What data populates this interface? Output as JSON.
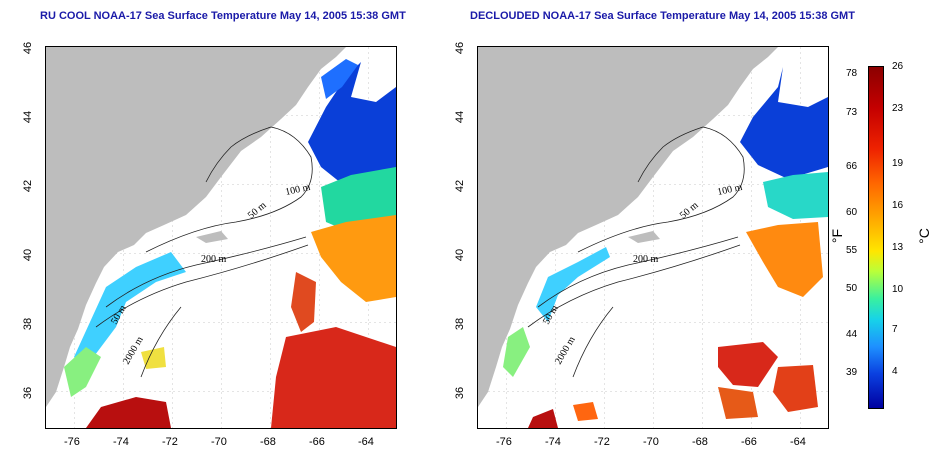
{
  "titles": {
    "left": "RU COOL NOAA-17 Sea Surface Temperature May 14, 2005 15:38 GMT",
    "right": "DECLOUDED NOAA-17 Sea Surface Temperature May 14, 2005 15:38 GMT"
  },
  "axes": {
    "lat_ticks": [
      "46",
      "44",
      "42",
      "40",
      "38",
      "36"
    ],
    "lon_ticks": [
      "-76",
      "-74",
      "-72",
      "-70",
      "-68",
      "-66",
      "-64"
    ]
  },
  "contour_labels": [
    "100 m",
    "50 m",
    "200 m",
    "50 m",
    "2000 m"
  ],
  "colorbar": {
    "fahrenheit_label": "°F",
    "celsius_label": "°C",
    "fahrenheit_ticks": [
      "78",
      "73",
      "66",
      "60",
      "55",
      "50",
      "44",
      "39"
    ],
    "celsius_ticks": [
      "26",
      "23",
      "19",
      "16",
      "13",
      "10",
      "7",
      "4"
    ]
  },
  "colors": {
    "land": "#bdbdbd",
    "title": "#1a1aa8",
    "warm": "#d41a10",
    "cold": "#0a40e0"
  }
}
